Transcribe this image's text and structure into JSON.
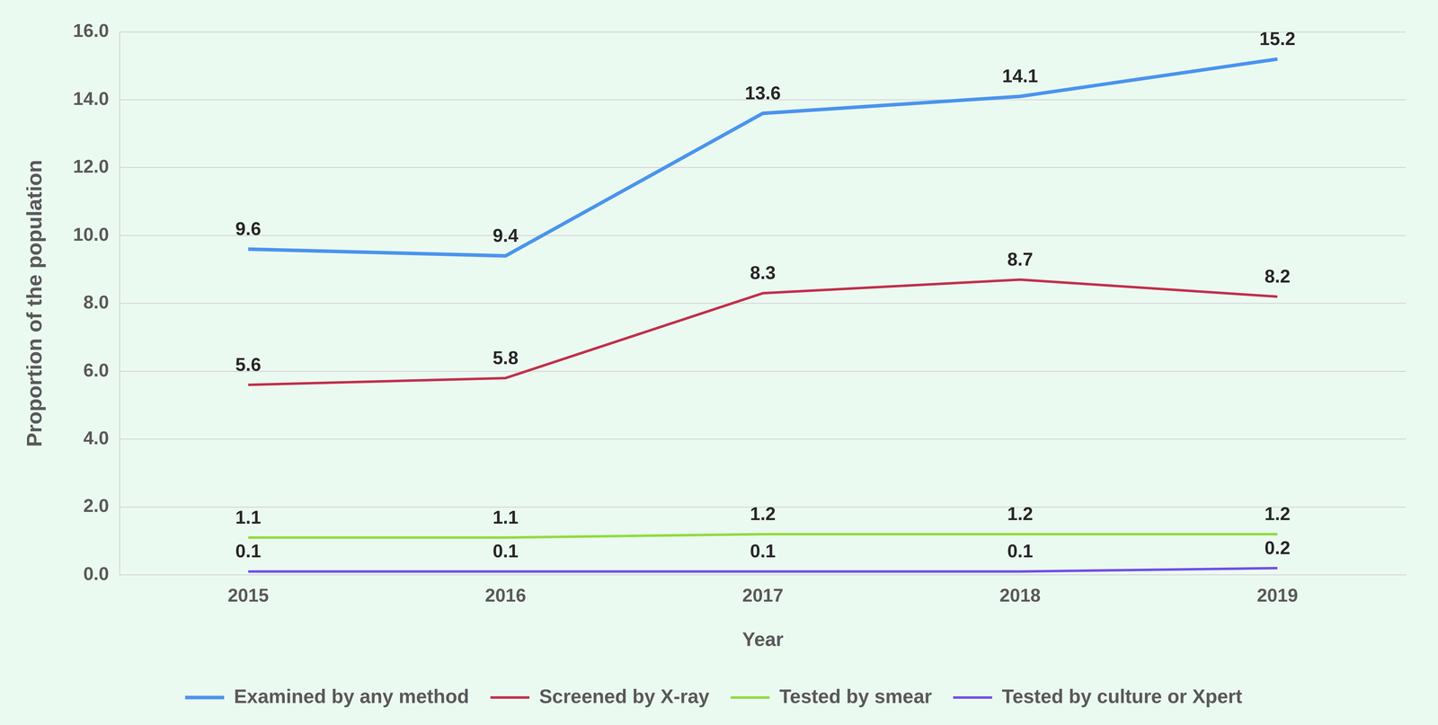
{
  "chart_data": {
    "type": "line",
    "x_label": "Year",
    "y_label": "Proportion of the population",
    "categories": [
      "2015",
      "2016",
      "2017",
      "2018",
      "2019"
    ],
    "series": [
      {
        "name": "Examined by any method",
        "color": "#4a94ee",
        "values": [
          9.6,
          9.4,
          13.6,
          14.1,
          15.2
        ]
      },
      {
        "name": "Screened by X-ray",
        "color": "#c1304b",
        "values": [
          5.6,
          5.8,
          8.3,
          8.7,
          8.2
        ]
      },
      {
        "name": "Tested by smear",
        "color": "#8fdc3c",
        "values": [
          1.1,
          1.1,
          1.2,
          1.2,
          1.2
        ]
      },
      {
        "name": "Tested by culture or Xpert",
        "color": "#7150e6",
        "values": [
          0.1,
          0.1,
          0.1,
          0.1,
          0.2
        ]
      }
    ],
    "ylim": [
      0,
      16
    ],
    "yticks": [
      {
        "value": 0,
        "label": "0.0"
      },
      {
        "value": 2,
        "label": "2.0"
      },
      {
        "value": 4,
        "label": "4.0"
      },
      {
        "value": 6,
        "label": "6.0"
      },
      {
        "value": 8,
        "label": "8.0"
      },
      {
        "value": 10,
        "label": "10.0"
      },
      {
        "value": 12,
        "label": "12.0"
      },
      {
        "value": 14,
        "label": "14.0"
      },
      {
        "value": 16,
        "label": "16.0"
      }
    ],
    "grid": true,
    "legend": "bottom",
    "data_labels": true
  }
}
